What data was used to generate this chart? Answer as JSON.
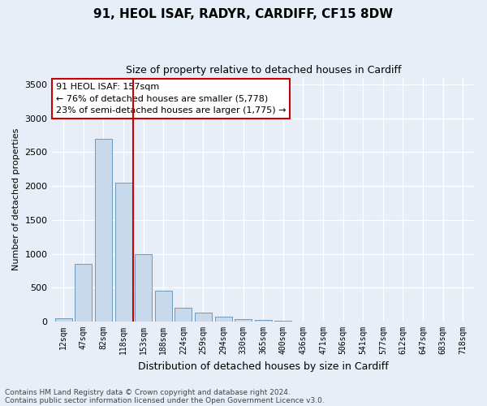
{
  "title": "91, HEOL ISAF, RADYR, CARDIFF, CF15 8DW",
  "subtitle": "Size of property relative to detached houses in Cardiff",
  "xlabel": "Distribution of detached houses by size in Cardiff",
  "ylabel": "Number of detached properties",
  "categories": [
    "12sqm",
    "47sqm",
    "82sqm",
    "118sqm",
    "153sqm",
    "188sqm",
    "224sqm",
    "259sqm",
    "294sqm",
    "330sqm",
    "365sqm",
    "400sqm",
    "436sqm",
    "471sqm",
    "506sqm",
    "541sqm",
    "577sqm",
    "612sqm",
    "647sqm",
    "683sqm",
    "718sqm"
  ],
  "values": [
    50,
    850,
    2700,
    2050,
    1000,
    450,
    200,
    130,
    70,
    40,
    20,
    8,
    5,
    2,
    1,
    0,
    0,
    0,
    0,
    0,
    0
  ],
  "bar_color": "#c8d9ec",
  "bar_edge_color": "#5b8db8",
  "vline_color": "#cc0000",
  "vline_x": 3.5,
  "annotation_text": "91 HEOL ISAF: 157sqm\n← 76% of detached houses are smaller (5,778)\n23% of semi-detached houses are larger (1,775) →",
  "annotation_box_color": "#ffffff",
  "annotation_box_edge_color": "#cc0000",
  "ylim": [
    0,
    3600
  ],
  "yticks": [
    0,
    500,
    1000,
    1500,
    2000,
    2500,
    3000,
    3500
  ],
  "footnote1": "Contains HM Land Registry data © Crown copyright and database right 2024.",
  "footnote2": "Contains public sector information licensed under the Open Government Licence v3.0.",
  "bg_color": "#e8eef7",
  "plot_bg_color": "#e8eef7",
  "title_fontsize": 11,
  "subtitle_fontsize": 9,
  "xlabel_fontsize": 9,
  "ylabel_fontsize": 8,
  "tick_fontsize": 7,
  "annotation_fontsize": 8,
  "footnote_fontsize": 6.5
}
